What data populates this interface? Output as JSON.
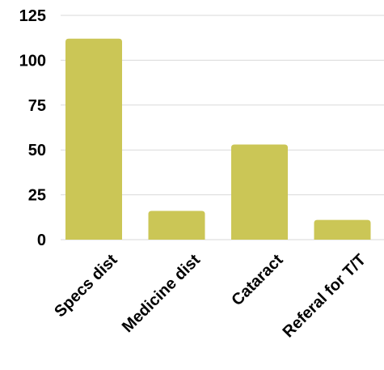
{
  "chart_data": {
    "type": "bar",
    "title": "",
    "xlabel": "",
    "ylabel": "",
    "categories": [
      "Specs dist",
      "Medicine dist",
      "Cataract",
      "Referal for T/T"
    ],
    "values": [
      112,
      16,
      53,
      11
    ],
    "ylim": [
      0,
      125
    ],
    "yticks": [
      0,
      25,
      50,
      75,
      100,
      125
    ],
    "grid": true,
    "legend": "none",
    "bar_color": "#CBC656",
    "grid_color": "#D9D9D9"
  }
}
